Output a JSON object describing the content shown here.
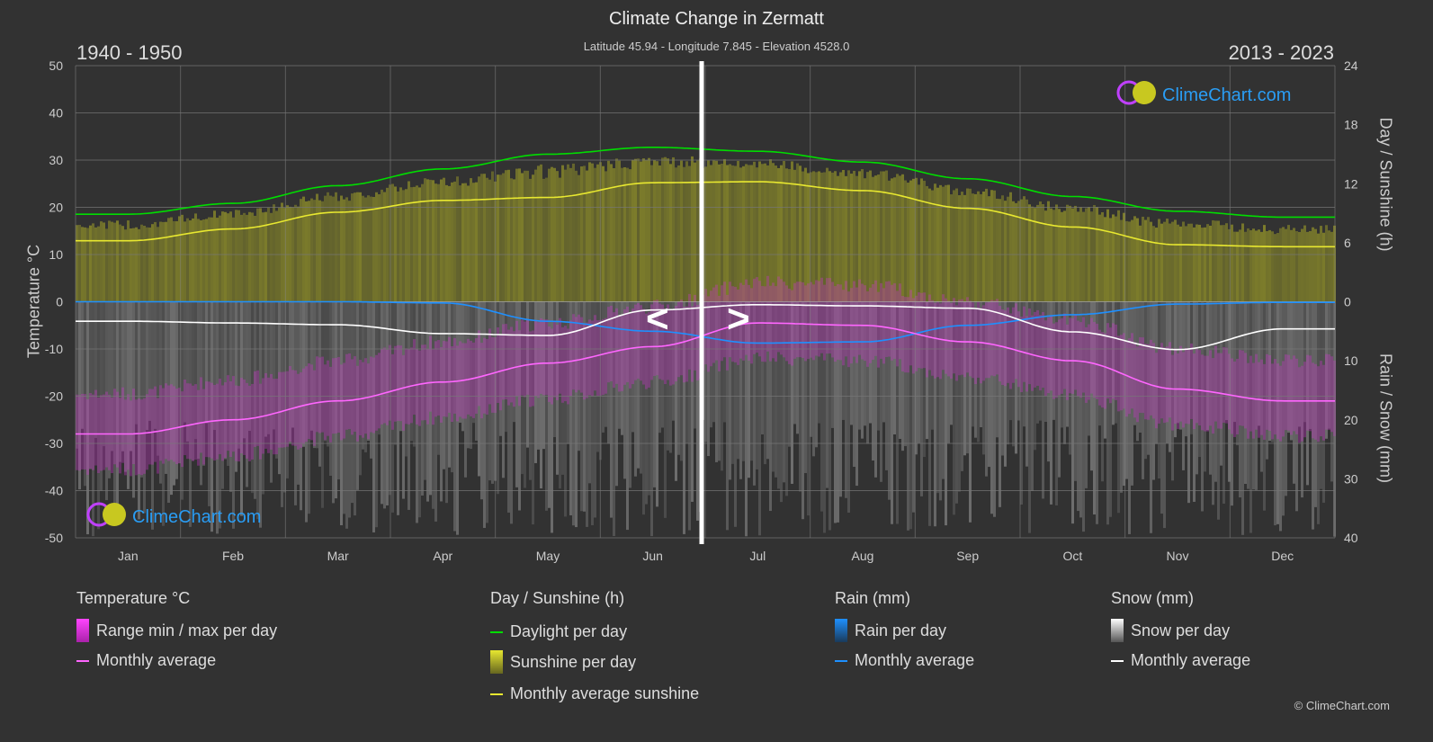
{
  "header": {
    "title": "Climate Change in Zermatt",
    "subtitle": "Latitude 45.94 - Longitude 7.845 - Elevation 4528.0",
    "left_period": "1940 - 1950",
    "right_period": "2013 - 2023"
  },
  "nav": {
    "prev": "<",
    "next": ">"
  },
  "logo_text": "ClimeChart.com",
  "copyright": "© ClimeChart.com",
  "colors": {
    "background": "#323232",
    "daylight": "#00dd00",
    "sunshine": "#e8e830",
    "sunshine_fill": "#8a8a2a",
    "temperature": "#ff66ff",
    "temperature_range": "#cc33cc",
    "rain": "#1e90ff",
    "snow": "#ffffff",
    "snow_fill": "#777777"
  },
  "chart_data": {
    "type": "line",
    "categories": [
      "Jan",
      "Feb",
      "Mar",
      "Apr",
      "May",
      "Jun",
      "Jul",
      "Aug",
      "Sep",
      "Oct",
      "Nov",
      "Dec"
    ],
    "left_axis": {
      "label": "Temperature °C",
      "range": [
        -50,
        50
      ],
      "ticks": [
        50,
        40,
        30,
        20,
        10,
        0,
        -10,
        -20,
        -30,
        -40,
        -50
      ]
    },
    "right_axis_top": {
      "label": "Day / Sunshine (h)",
      "range": [
        0,
        24
      ],
      "ticks": [
        24,
        18,
        12,
        6,
        0
      ]
    },
    "right_axis_bottom": {
      "label": "Rain / Snow (mm)",
      "range": [
        0,
        40
      ],
      "ticks": [
        0,
        10,
        20,
        30,
        40
      ]
    },
    "grid": true,
    "series": [
      {
        "name": "Daylight per day",
        "axis": "sunshine",
        "values": [
          8.9,
          10.0,
          11.8,
          13.5,
          15.0,
          15.7,
          15.3,
          14.2,
          12.5,
          10.7,
          9.2,
          8.6
        ]
      },
      {
        "name": "Monthly average sunshine",
        "axis": "sunshine",
        "values": [
          6.2,
          7.4,
          9.1,
          10.3,
          10.6,
          12.1,
          12.2,
          11.3,
          9.5,
          7.6,
          5.8,
          5.6
        ]
      },
      {
        "name": "Monthly average",
        "group": "Temperature °C",
        "axis": "temperature",
        "values": [
          -28,
          -25,
          -21,
          -17,
          -13,
          -9.5,
          -4.5,
          -5,
          -8.5,
          -12.5,
          -18.5,
          -21
        ]
      },
      {
        "name": "Monthly average",
        "group": "Rain (mm)",
        "axis": "precip",
        "values": [
          0,
          0,
          0,
          0.2,
          3.3,
          5,
          7,
          6.8,
          4,
          2.2,
          0.4,
          0.1
        ]
      },
      {
        "name": "Monthly average",
        "group": "Snow (mm)",
        "axis": "precip",
        "values": [
          3.3,
          3.6,
          3.9,
          5.4,
          5.7,
          1.4,
          0.5,
          0.7,
          1.1,
          5.1,
          8.1,
          4.6
        ]
      }
    ]
  },
  "legend": {
    "temperature": {
      "title": "Temperature °C",
      "items": [
        "Range min / max per day",
        "Monthly average"
      ]
    },
    "sunshine": {
      "title": "Day / Sunshine (h)",
      "items": [
        "Daylight per day",
        "Sunshine per day",
        "Monthly average sunshine"
      ]
    },
    "rain": {
      "title": "Rain (mm)",
      "items": [
        "Rain per day",
        "Monthly average"
      ]
    },
    "snow": {
      "title": "Snow (mm)",
      "items": [
        "Snow per day",
        "Monthly average"
      ]
    }
  }
}
